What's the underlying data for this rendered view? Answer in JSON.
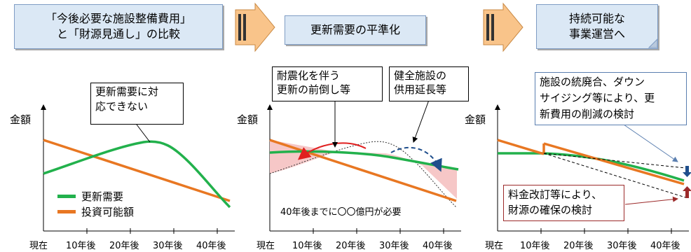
{
  "headers": {
    "step1_line1": "「今後必要な施設整備費用」",
    "step1_line2": "と「財源見通し」の比較",
    "step2": "更新需要の平準化",
    "step3_line1": "持続可能な",
    "step3_line2": "事業運営へ"
  },
  "callouts": {
    "c1_line1": "更新需要に対",
    "c1_line2": "応できない",
    "c2_line1": "耐震化を伴う",
    "c2_line2": "更新の前倒し等",
    "c3_line1": "健全施設の",
    "c3_line2": "供用延長等",
    "c4_line1": "施設の統廃合、ダウン",
    "c4_line2": "サイジング等により、更",
    "c4_line3": "新費用の削減の検討",
    "c5_line1": "料金改訂等により、",
    "c5_line2": "財源の確保の検討"
  },
  "axis": {
    "ylabel": "金額",
    "xticks": [
      "現在",
      "10年後",
      "20年後",
      "30年後",
      "40年後"
    ]
  },
  "legend": {
    "renewal_demand": "更新需要",
    "investable_amount": "投資可能額"
  },
  "colors": {
    "renewal_demand": "#22b14c",
    "investable_amount": "#e87722",
    "header_fill": "#dbe8f5",
    "arrow_fill": "#f9c48a",
    "gap_fill": "#f6c7c7"
  },
  "panel2_note": "40年後までに〇〇億円が必要"
}
